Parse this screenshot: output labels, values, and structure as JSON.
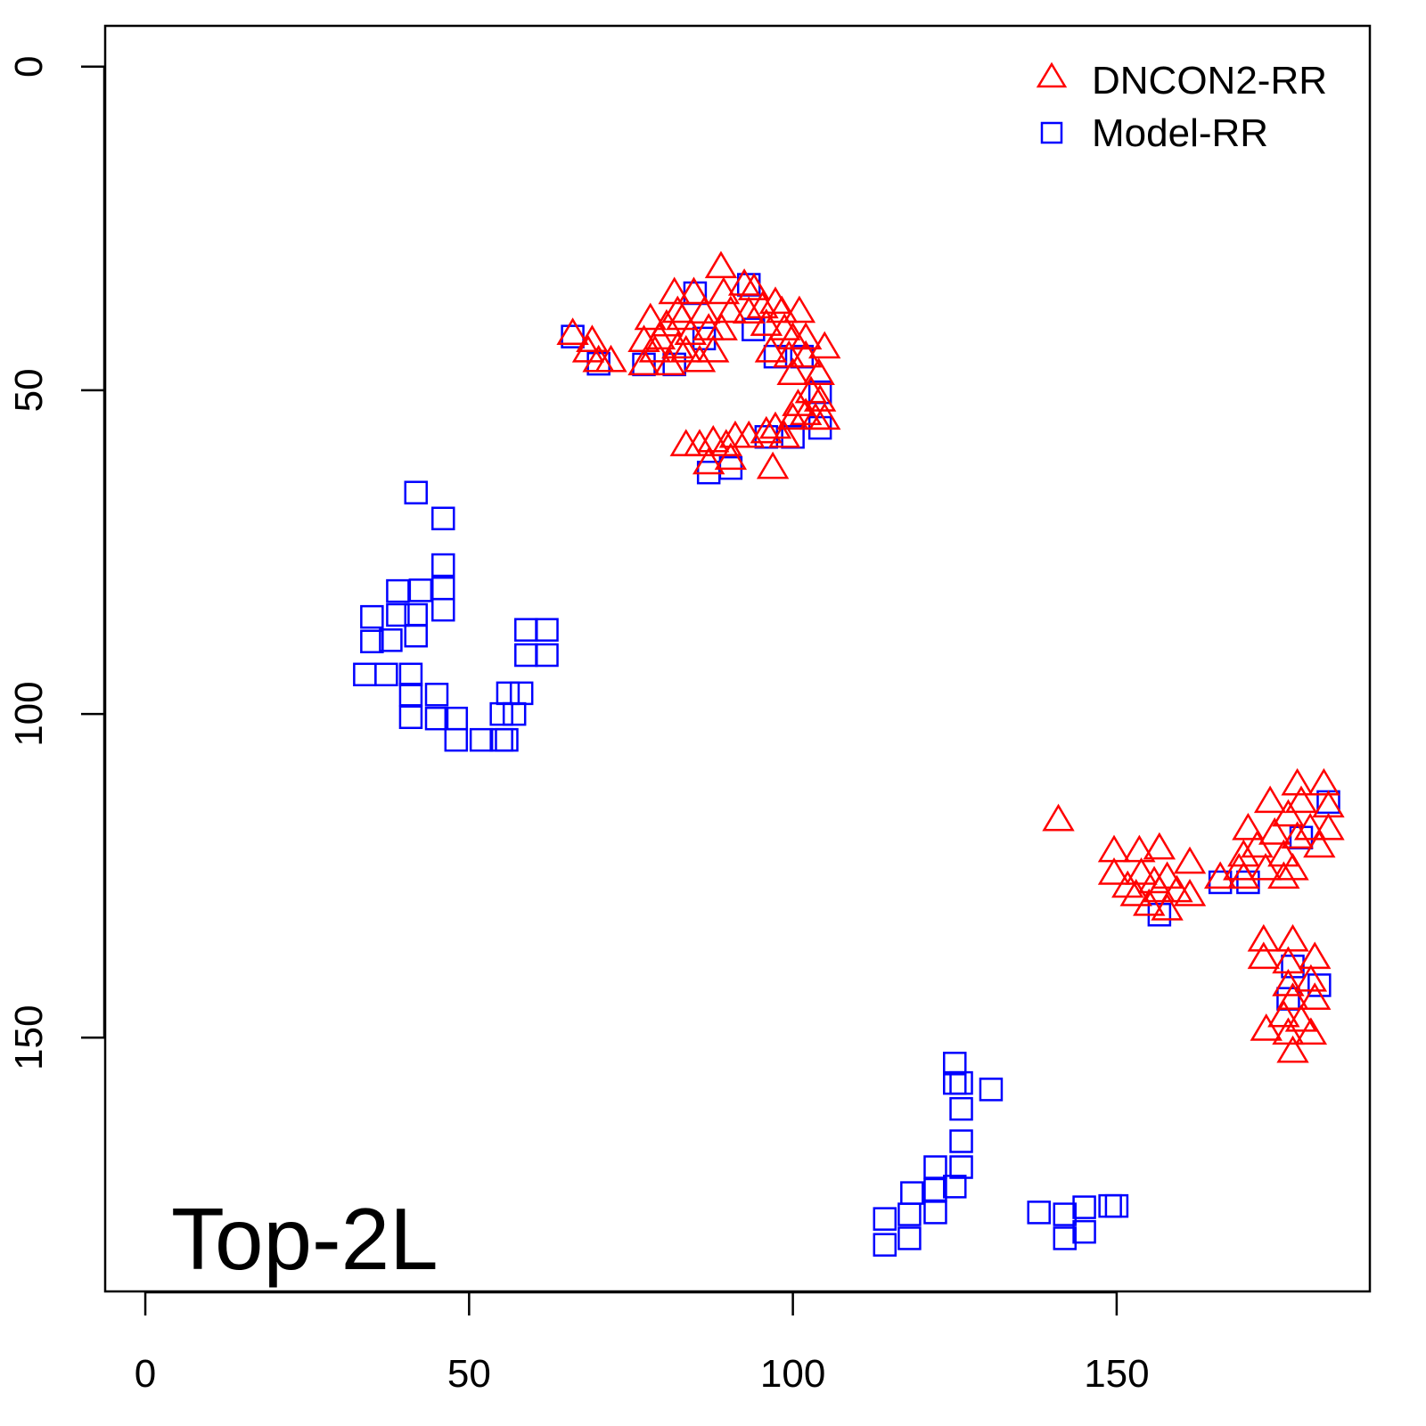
{
  "chart_data": {
    "type": "scatter",
    "title": "",
    "annotation": "Top-2L",
    "xlabel": "",
    "ylabel": "",
    "xlim": [
      -6.2,
      189.1
    ],
    "ylim": [
      -6.3,
      189.2
    ],
    "y_reversed": true,
    "x_ticks": [
      0,
      50,
      100,
      150
    ],
    "y_ticks": [
      0,
      50,
      100,
      150
    ],
    "grid": false,
    "legend_position": "top-right",
    "series": [
      {
        "name": "DNCON2-RR",
        "marker": "triangle-open",
        "color": "#ff0000",
        "points": [
          [
            66,
            41.3
          ],
          [
            69,
            42.4
          ],
          [
            68.4,
            44
          ],
          [
            70,
            45.5
          ],
          [
            71.9,
            45.5
          ],
          [
            77,
            42.4
          ],
          [
            77,
            46
          ],
          [
            78,
            39
          ],
          [
            81,
            46
          ],
          [
            81.7,
            35
          ],
          [
            79.4,
            42
          ],
          [
            82.9,
            39
          ],
          [
            83.5,
            44
          ],
          [
            84.7,
            35
          ],
          [
            85.6,
            45.5
          ],
          [
            86.3,
            38
          ],
          [
            87.7,
            44
          ],
          [
            88.9,
            31
          ],
          [
            89.3,
            35
          ],
          [
            89,
            40.6
          ],
          [
            92.5,
            33.7
          ],
          [
            94,
            34.4
          ],
          [
            93.2,
            38
          ],
          [
            95.3,
            37.2
          ],
          [
            97.3,
            36.5
          ],
          [
            98.3,
            37.9
          ],
          [
            101,
            37.9
          ],
          [
            98.7,
            40.6
          ],
          [
            96.6,
            44
          ],
          [
            100,
            42
          ],
          [
            102,
            42
          ],
          [
            102,
            44.8
          ],
          [
            104.9,
            43.4
          ],
          [
            100,
            47.5
          ],
          [
            104,
            47.5
          ],
          [
            102.8,
            50.3
          ],
          [
            104.2,
            51.6
          ],
          [
            100.8,
            52.3
          ],
          [
            103.5,
            54.4
          ],
          [
            100,
            54.4
          ],
          [
            97.3,
            55.8
          ],
          [
            98.7,
            57.2
          ],
          [
            95.9,
            56.5
          ],
          [
            93.2,
            57.2
          ],
          [
            91.1,
            57.2
          ],
          [
            89.7,
            58.5
          ],
          [
            87.7,
            57.9
          ],
          [
            85.6,
            58.5
          ],
          [
            83.5,
            58.5
          ],
          [
            87,
            61.3
          ],
          [
            90.4,
            60.6
          ],
          [
            96.9,
            62
          ],
          [
            82.2,
            37.9
          ],
          [
            80.5,
            40
          ],
          [
            84.2,
            41.3
          ],
          [
            87,
            40.6
          ],
          [
            90.4,
            37.9
          ],
          [
            82.2,
            43.4
          ],
          [
            78.7,
            44
          ],
          [
            95.9,
            39.9
          ],
          [
            99.4,
            44.8
          ],
          [
            102,
            53.7
          ],
          [
            104.9,
            54.4
          ],
          [
            149.6,
            121.2
          ],
          [
            149.6,
            124.7
          ],
          [
            153.5,
            121.2
          ],
          [
            156.6,
            120.8
          ],
          [
            153.8,
            124.7
          ],
          [
            155.8,
            126
          ],
          [
            157.8,
            125.3
          ],
          [
            153,
            128
          ],
          [
            155,
            129.5
          ],
          [
            157.8,
            130.2
          ],
          [
            161.3,
            123
          ],
          [
            161.3,
            128
          ],
          [
            159.3,
            127.4
          ],
          [
            151.7,
            126.7
          ],
          [
            156.6,
            127.4
          ],
          [
            141,
            116.4
          ],
          [
            166,
            125.3
          ],
          [
            169.6,
            125.3
          ],
          [
            170.3,
            117.8
          ],
          [
            171.7,
            120.5
          ],
          [
            169.6,
            121.9
          ],
          [
            173.7,
            113.6
          ],
          [
            174.4,
            118.5
          ],
          [
            175.8,
            121.9
          ],
          [
            173,
            124
          ],
          [
            176.5,
            115.7
          ],
          [
            178.5,
            113.6
          ],
          [
            177.9,
            119.1
          ],
          [
            179.9,
            117.8
          ],
          [
            182,
            110.9
          ],
          [
            182.7,
            114.3
          ],
          [
            182.7,
            117.8
          ],
          [
            181.3,
            120.5
          ],
          [
            177.9,
            110.9
          ],
          [
            177.2,
            124
          ],
          [
            168.9,
            124
          ],
          [
            175.8,
            125.3
          ],
          [
            172.7,
            135
          ],
          [
            172.7,
            137.7
          ],
          [
            177.2,
            135
          ],
          [
            176.5,
            138.4
          ],
          [
            180.6,
            137.7
          ],
          [
            176.5,
            141.9
          ],
          [
            180,
            141.2
          ],
          [
            177.2,
            144
          ],
          [
            180.6,
            144
          ],
          [
            173.1,
            148.8
          ],
          [
            176.5,
            149.4
          ],
          [
            180,
            149.4
          ],
          [
            177.2,
            152.2
          ],
          [
            175.8,
            146.7
          ],
          [
            178.5,
            147.4
          ]
        ]
      },
      {
        "name": "Model-RR",
        "marker": "square-open",
        "color": "#0000ff",
        "points": [
          [
            41.8,
            65.8
          ],
          [
            46,
            69.8
          ],
          [
            46,
            77
          ],
          [
            46,
            80.6
          ],
          [
            46,
            83.9
          ],
          [
            42.5,
            80.9
          ],
          [
            39,
            81
          ],
          [
            39,
            84.7
          ],
          [
            35,
            85
          ],
          [
            35,
            88.8
          ],
          [
            37.9,
            88.6
          ],
          [
            41.8,
            84.7
          ],
          [
            41.8,
            87.9
          ],
          [
            33.9,
            93.9
          ],
          [
            37.2,
            93.9
          ],
          [
            41,
            93.9
          ],
          [
            41,
            97
          ],
          [
            45,
            97
          ],
          [
            41,
            100.5
          ],
          [
            45,
            100.7
          ],
          [
            48,
            100.7
          ],
          [
            48,
            104
          ],
          [
            51.9,
            104
          ],
          [
            55,
            104
          ],
          [
            55.8,
            104
          ],
          [
            55,
            100
          ],
          [
            56,
            96.8
          ],
          [
            58.1,
            96.8
          ],
          [
            58.8,
            87
          ],
          [
            62,
            87
          ],
          [
            58.8,
            90.9
          ],
          [
            62,
            90.9
          ],
          [
            57,
            100
          ],
          [
            125,
            154
          ],
          [
            125,
            157
          ],
          [
            126,
            157
          ],
          [
            130.6,
            158
          ],
          [
            126,
            161
          ],
          [
            126,
            166
          ],
          [
            126,
            170
          ],
          [
            122,
            170
          ],
          [
            125,
            173
          ],
          [
            122,
            173.5
          ],
          [
            118.4,
            174
          ],
          [
            122,
            177
          ],
          [
            118,
            177.3
          ],
          [
            114.2,
            178
          ],
          [
            114.2,
            182
          ],
          [
            118,
            181
          ],
          [
            138,
            177
          ],
          [
            142,
            177.3
          ],
          [
            142,
            181
          ],
          [
            145,
            180
          ],
          [
            145,
            176.2
          ],
          [
            149,
            176
          ],
          [
            150,
            176
          ],
          [
            66,
            41.7
          ],
          [
            70,
            45.9
          ],
          [
            77,
            46
          ],
          [
            81.7,
            46
          ],
          [
            84.9,
            35
          ],
          [
            86.3,
            42
          ],
          [
            93.2,
            33.7
          ],
          [
            93.9,
            40.6
          ],
          [
            97.3,
            44.8
          ],
          [
            101.4,
            44.8
          ],
          [
            104.2,
            50.3
          ],
          [
            104.2,
            55.8
          ],
          [
            100,
            57.2
          ],
          [
            95.9,
            57.2
          ],
          [
            90.4,
            62
          ],
          [
            87,
            62.7
          ],
          [
            156.6,
            131
          ],
          [
            166,
            126
          ],
          [
            170.3,
            126
          ],
          [
            176.5,
            144
          ],
          [
            177.2,
            139
          ],
          [
            181.3,
            141.9
          ],
          [
            182.7,
            113.6
          ],
          [
            178.5,
            119.1
          ]
        ]
      }
    ]
  }
}
